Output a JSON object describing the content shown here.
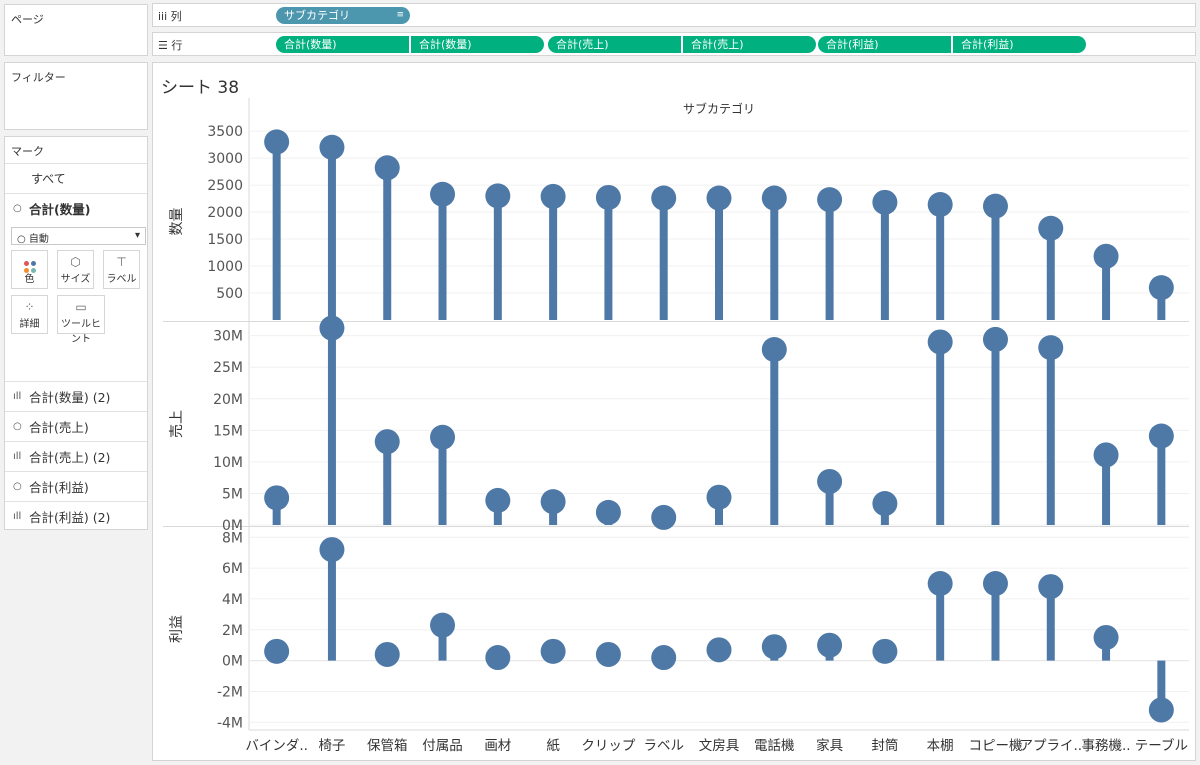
{
  "left_panel": {
    "pages_title": "ページ",
    "filters_title": "フィルター",
    "marks": {
      "title": "マーク",
      "all_label": "すべて",
      "active_label": "合計(数量)",
      "dropdown_value": "○ 自動",
      "cards": [
        {
          "label": "色",
          "icon": "color-dots-icon"
        },
        {
          "label": "サイズ",
          "icon": "size-icon"
        },
        {
          "label": "ラベル",
          "icon": "label-icon"
        },
        {
          "label": "詳細",
          "icon": "detail-icon"
        },
        {
          "label": "ツールヒント",
          "icon": "tooltip-icon"
        }
      ],
      "layers": [
        {
          "label": "合計(数量) (2)",
          "icon": "bar-icon"
        },
        {
          "label": "合計(売上)",
          "icon": "circle-icon"
        },
        {
          "label": "合計(売上) (2)",
          "icon": "bar-icon"
        },
        {
          "label": "合計(利益)",
          "icon": "circle-icon"
        },
        {
          "label": "合計(利益) (2)",
          "icon": "bar-icon"
        }
      ]
    }
  },
  "shelves": {
    "columns_label": "列",
    "rows_label": "行",
    "column_pill": "サブカテゴリ",
    "row_pills": [
      "合計(数量)",
      "合計(数量)",
      "合計(売上)",
      "合計(売上)",
      "合計(利益)",
      "合計(利益)"
    ]
  },
  "sheet": {
    "title": "シート 38",
    "header": "サブカテゴリ"
  },
  "colors": {
    "mark": "#4e79a7",
    "dimension_pill": "#4c96ae",
    "measure_pill": "#00b17f"
  },
  "chart_data": {
    "type": "lollipop",
    "x_title": "サブカテゴリ",
    "categories": [
      "バインダ..",
      "椅子",
      "保管箱",
      "付属品",
      "画材",
      "紙",
      "クリップ",
      "ラベル",
      "文房具",
      "電話機",
      "家具",
      "封筒",
      "本棚",
      "コピー機",
      "アプライ..",
      "事務機..",
      "テーブル"
    ],
    "panes": [
      {
        "name": "数量",
        "ylabel": "数量",
        "ylim": [
          0,
          3650
        ],
        "ticks": [
          500,
          1000,
          1500,
          2000,
          2500,
          3000,
          3500
        ],
        "tick_labels": [
          "500",
          "1000",
          "1500",
          "2000",
          "2500",
          "3000",
          "3500"
        ],
        "values": [
          3300,
          3200,
          2820,
          2330,
          2300,
          2290,
          2270,
          2260,
          2260,
          2260,
          2230,
          2180,
          2140,
          2110,
          1700,
          1180,
          600
        ]
      },
      {
        "name": "売上",
        "ylabel": "売上",
        "ylim": [
          0,
          32000000
        ],
        "ticks": [
          0,
          5000000,
          10000000,
          15000000,
          20000000,
          25000000,
          30000000
        ],
        "tick_labels": [
          "0M",
          "5M",
          "10M",
          "15M",
          "20M",
          "25M",
          "30M"
        ],
        "values": [
          4300000,
          31200000,
          13200000,
          13900000,
          3900000,
          3700000,
          2000000,
          1200000,
          4400000,
          27800000,
          6900000,
          3400000,
          29000000,
          29400000,
          28100000,
          11100000,
          14100000
        ]
      },
      {
        "name": "利益",
        "ylabel": "利益",
        "ylim": [
          -4500000,
          8600000
        ],
        "ticks": [
          -4000000,
          -2000000,
          0,
          2000000,
          4000000,
          6000000,
          8000000
        ],
        "tick_labels": [
          "-4M",
          "-2M",
          "0M",
          "2M",
          "4M",
          "6M",
          "8M"
        ],
        "values": [
          600000,
          7200000,
          400000,
          2300000,
          200000,
          600000,
          400000,
          200000,
          700000,
          900000,
          1000000,
          600000,
          5000000,
          5000000,
          4800000,
          1500000,
          -3200000
        ]
      }
    ]
  }
}
